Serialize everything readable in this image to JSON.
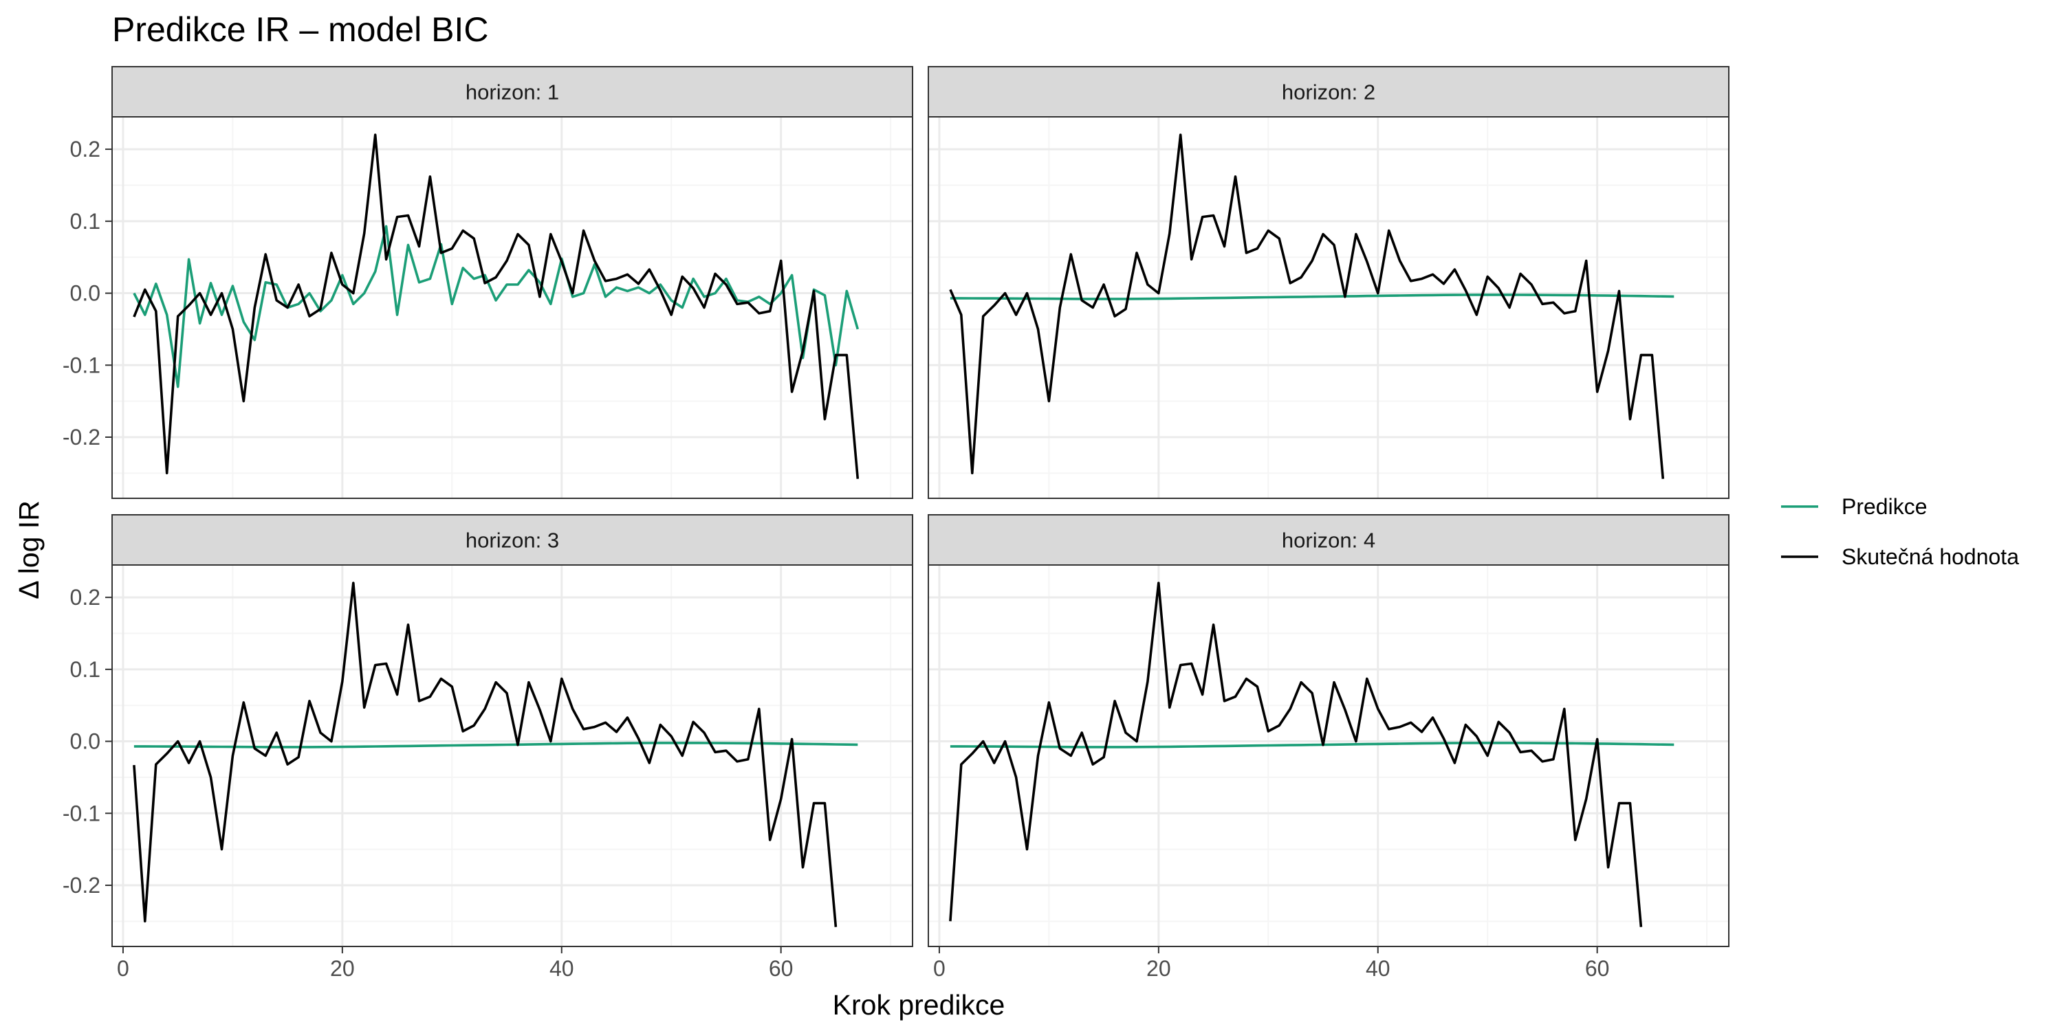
{
  "title": "Predikce IR – model BIC",
  "colors": {
    "prediction": "#1b9e77",
    "actual": "#000000",
    "strip_fill": "#d9d9d9",
    "panel_border": "#333333",
    "grid_major": "#ebebeb",
    "grid_minor": "#f5f5f5"
  },
  "chart_data": {
    "type": "line",
    "title": "Predikce IR – model BIC",
    "xlabel": "Krok predikce",
    "ylabel": "Δ log IR",
    "xlim": [
      -1,
      72
    ],
    "ylim": [
      -0.285,
      0.245
    ],
    "xticks": [
      0,
      20,
      40,
      60
    ],
    "xtick_labels": [
      "0",
      "20",
      "40",
      "60"
    ],
    "yticks": [
      -0.2,
      -0.1,
      0.0,
      0.1,
      0.2
    ],
    "ytick_labels": [
      "-0.2",
      "-0.1",
      "0.0",
      "0.1",
      "0.2"
    ],
    "grid": true,
    "legend_position": "right",
    "legend": [
      {
        "name": "Predikce",
        "color_key": "prediction"
      },
      {
        "name": "Skutečná hodnota",
        "color_key": "actual"
      }
    ],
    "facets": [
      {
        "strip": "horizon: 1",
        "series": [
          {
            "name": "Predikce",
            "x_start": 1,
            "values": [
              0.0,
              -0.03,
              0.013,
              -0.03,
              -0.13,
              0.047,
              -0.042,
              0.014,
              -0.03,
              0.01,
              -0.04,
              -0.065,
              0.015,
              0.012,
              -0.02,
              -0.015,
              0.0,
              -0.025,
              -0.01,
              0.025,
              -0.015,
              0.0,
              0.03,
              0.093,
              -0.03,
              0.067,
              0.015,
              0.02,
              0.068,
              -0.015,
              0.035,
              0.02,
              0.025,
              -0.01,
              0.012,
              0.012,
              0.032,
              0.015,
              -0.015,
              0.048,
              -0.005,
              0.0,
              0.04,
              -0.005,
              0.008,
              0.003,
              0.008,
              0.0,
              0.012,
              -0.01,
              -0.02,
              0.02,
              -0.005,
              0.0,
              0.02,
              -0.01,
              -0.012,
              -0.005,
              -0.015,
              0.0,
              0.025,
              -0.09,
              0.005,
              -0.003,
              -0.1,
              0.003,
              -0.05
            ]
          },
          {
            "name": "Skutečná hodnota",
            "x_start": 1,
            "values": [
              -0.033,
              0.005,
              -0.025,
              -0.25,
              -0.032,
              -0.017,
              0.0,
              -0.03,
              0.0,
              -0.05,
              -0.15,
              -0.02,
              0.054,
              -0.01,
              -0.02,
              0.012,
              -0.032,
              -0.022,
              0.056,
              0.012,
              0.0,
              0.083,
              0.22,
              0.047,
              0.106,
              0.108,
              0.065,
              0.162,
              0.056,
              0.062,
              0.087,
              0.076,
              0.014,
              0.022,
              0.045,
              0.082,
              0.067,
              -0.005,
              0.082,
              0.044,
              0.0,
              0.087,
              0.045,
              0.017,
              0.02,
              0.026,
              0.013,
              0.033,
              0.004,
              -0.03,
              0.023,
              0.007,
              -0.02,
              0.027,
              0.012,
              -0.015,
              -0.013,
              -0.028,
              -0.025,
              0.045,
              -0.137,
              -0.08,
              0.003,
              -0.175,
              -0.086,
              -0.086,
              -0.258
            ]
          }
        ]
      },
      {
        "strip": "horizon: 2",
        "series": [
          {
            "name": "Predikce",
            "x_start": 1,
            "values": [
              -0.007,
              -0.007,
              -0.0071,
              -0.0072,
              -0.0072,
              -0.0073,
              -0.0074,
              -0.0075,
              -0.0076,
              -0.0077,
              -0.0078,
              -0.0079,
              -0.008,
              -0.008,
              -0.008,
              -0.008,
              -0.008,
              -0.0079,
              -0.0078,
              -0.0077,
              -0.0075,
              -0.0073,
              -0.0071,
              -0.0069,
              -0.0067,
              -0.0065,
              -0.0063,
              -0.0061,
              -0.0059,
              -0.0057,
              -0.0055,
              -0.0053,
              -0.0051,
              -0.0049,
              -0.0047,
              -0.0045,
              -0.0043,
              -0.0041,
              -0.0039,
              -0.0037,
              -0.0035,
              -0.0033,
              -0.0031,
              -0.0029,
              -0.0027,
              -0.0025,
              -0.0024,
              -0.0023,
              -0.0022,
              -0.0022,
              -0.0022,
              -0.0022,
              -0.0023,
              -0.0024,
              -0.0025,
              -0.0026,
              -0.0027,
              -0.0028,
              -0.003,
              -0.0032,
              -0.0034,
              -0.0036,
              -0.0038,
              -0.004,
              -0.0042,
              -0.0044,
              -0.0046
            ]
          },
          {
            "name": "Skutečná hodnota",
            "x_start": 1,
            "values": [
              0.005,
              -0.03,
              -0.25,
              -0.032,
              -0.017,
              0.0,
              -0.03,
              0.0,
              -0.05,
              -0.15,
              -0.02,
              0.054,
              -0.01,
              -0.02,
              0.012,
              -0.032,
              -0.022,
              0.056,
              0.012,
              0.0,
              0.083,
              0.22,
              0.047,
              0.106,
              0.108,
              0.065,
              0.162,
              0.056,
              0.062,
              0.087,
              0.076,
              0.014,
              0.022,
              0.045,
              0.082,
              0.067,
              -0.005,
              0.082,
              0.044,
              0.0,
              0.087,
              0.045,
              0.017,
              0.02,
              0.026,
              0.013,
              0.033,
              0.004,
              -0.03,
              0.023,
              0.007,
              -0.02,
              0.027,
              0.012,
              -0.015,
              -0.013,
              -0.028,
              -0.025,
              0.045,
              -0.137,
              -0.08,
              0.003,
              -0.175,
              -0.086,
              -0.086,
              -0.258
            ]
          }
        ]
      },
      {
        "strip": "horizon: 3",
        "series": [
          {
            "name": "Predikce",
            "x_start": 1,
            "values": [
              -0.007,
              -0.007,
              -0.0071,
              -0.0072,
              -0.0072,
              -0.0073,
              -0.0074,
              -0.0075,
              -0.0076,
              -0.0077,
              -0.0078,
              -0.0079,
              -0.008,
              -0.008,
              -0.008,
              -0.008,
              -0.008,
              -0.0079,
              -0.0078,
              -0.0077,
              -0.0075,
              -0.0073,
              -0.0071,
              -0.0069,
              -0.0067,
              -0.0065,
              -0.0063,
              -0.0061,
              -0.0059,
              -0.0057,
              -0.0055,
              -0.0053,
              -0.0051,
              -0.0049,
              -0.0047,
              -0.0045,
              -0.0043,
              -0.0041,
              -0.0039,
              -0.0037,
              -0.0035,
              -0.0033,
              -0.0031,
              -0.0029,
              -0.0027,
              -0.0025,
              -0.0024,
              -0.0023,
              -0.0022,
              -0.0022,
              -0.0022,
              -0.0022,
              -0.0023,
              -0.0024,
              -0.0025,
              -0.0026,
              -0.0027,
              -0.0028,
              -0.003,
              -0.0032,
              -0.0034,
              -0.0036,
              -0.0038,
              -0.004,
              -0.0042,
              -0.0044,
              -0.0046
            ]
          },
          {
            "name": "Skutečná hodnota",
            "x_start": 1,
            "values": [
              -0.033,
              -0.25,
              -0.032,
              -0.017,
              0.0,
              -0.03,
              0.0,
              -0.05,
              -0.15,
              -0.02,
              0.054,
              -0.01,
              -0.02,
              0.012,
              -0.032,
              -0.022,
              0.056,
              0.012,
              0.0,
              0.083,
              0.22,
              0.047,
              0.106,
              0.108,
              0.065,
              0.162,
              0.056,
              0.062,
              0.087,
              0.076,
              0.014,
              0.022,
              0.045,
              0.082,
              0.067,
              -0.005,
              0.082,
              0.044,
              0.0,
              0.087,
              0.045,
              0.017,
              0.02,
              0.026,
              0.013,
              0.033,
              0.004,
              -0.03,
              0.023,
              0.007,
              -0.02,
              0.027,
              0.012,
              -0.015,
              -0.013,
              -0.028,
              -0.025,
              0.045,
              -0.137,
              -0.08,
              0.003,
              -0.175,
              -0.086,
              -0.086,
              -0.258
            ]
          }
        ]
      },
      {
        "strip": "horizon: 4",
        "series": [
          {
            "name": "Predikce",
            "x_start": 1,
            "values": [
              -0.007,
              -0.007,
              -0.0071,
              -0.0072,
              -0.0072,
              -0.0073,
              -0.0074,
              -0.0075,
              -0.0076,
              -0.0077,
              -0.0078,
              -0.0079,
              -0.008,
              -0.008,
              -0.008,
              -0.008,
              -0.008,
              -0.0079,
              -0.0078,
              -0.0077,
              -0.0075,
              -0.0073,
              -0.0071,
              -0.0069,
              -0.0067,
              -0.0065,
              -0.0063,
              -0.0061,
              -0.0059,
              -0.0057,
              -0.0055,
              -0.0053,
              -0.0051,
              -0.0049,
              -0.0047,
              -0.0045,
              -0.0043,
              -0.0041,
              -0.0039,
              -0.0037,
              -0.0035,
              -0.0033,
              -0.0031,
              -0.0029,
              -0.0027,
              -0.0025,
              -0.0024,
              -0.0023,
              -0.0022,
              -0.0022,
              -0.0022,
              -0.0022,
              -0.0023,
              -0.0024,
              -0.0025,
              -0.0026,
              -0.0027,
              -0.0028,
              -0.003,
              -0.0032,
              -0.0034,
              -0.0036,
              -0.0038,
              -0.004,
              -0.0042,
              -0.0044,
              -0.0046
            ]
          },
          {
            "name": "Skutečná hodnota",
            "x_start": 1,
            "values": [
              -0.25,
              -0.032,
              -0.017,
              0.0,
              -0.03,
              0.0,
              -0.05,
              -0.15,
              -0.02,
              0.054,
              -0.01,
              -0.02,
              0.012,
              -0.032,
              -0.022,
              0.056,
              0.012,
              0.0,
              0.083,
              0.22,
              0.047,
              0.106,
              0.108,
              0.065,
              0.162,
              0.056,
              0.062,
              0.087,
              0.076,
              0.014,
              0.022,
              0.045,
              0.082,
              0.067,
              -0.005,
              0.082,
              0.044,
              0.0,
              0.087,
              0.045,
              0.017,
              0.02,
              0.026,
              0.013,
              0.033,
              0.004,
              -0.03,
              0.023,
              0.007,
              -0.02,
              0.027,
              0.012,
              -0.015,
              -0.013,
              -0.028,
              -0.025,
              0.045,
              -0.137,
              -0.08,
              0.003,
              -0.175,
              -0.086,
              -0.086,
              -0.258
            ]
          }
        ]
      }
    ]
  }
}
